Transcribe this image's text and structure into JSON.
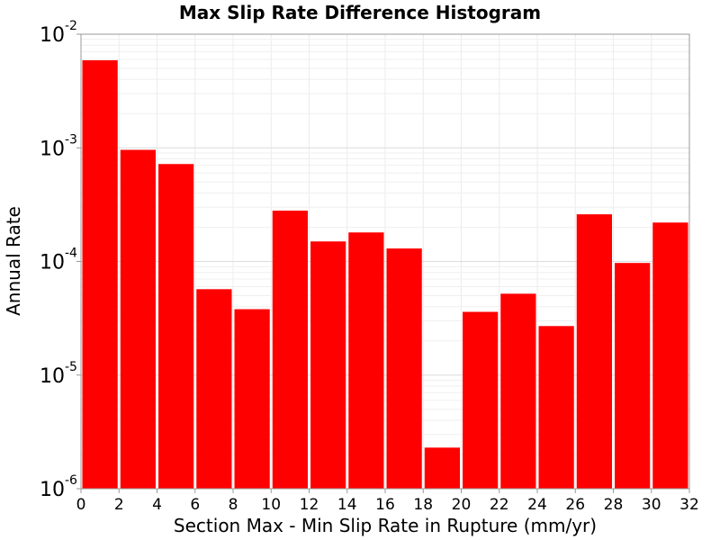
{
  "chart_data": {
    "type": "bar",
    "title": "Max Slip Rate Difference Histogram",
    "xlabel": "Section Max - Min Slip Rate in Rupture (mm/yr)",
    "ylabel": "Annual Rate",
    "yscale": "log",
    "ylim": [
      1e-06,
      0.01
    ],
    "xlim": [
      0,
      32
    ],
    "bin_width": 2,
    "x": [
      1,
      3,
      5,
      7,
      9,
      11,
      13,
      15,
      17,
      19,
      21,
      23,
      25,
      27,
      29,
      31
    ],
    "values": [
      0.0059,
      0.00096,
      0.00072,
      5.7e-05,
      3.8e-05,
      0.00028,
      0.00015,
      0.00018,
      0.00013,
      2.3e-06,
      3.6e-05,
      5.2e-05,
      2.7e-05,
      0.00026,
      9.7e-05,
      0.00022
    ],
    "bar_color": "#ff0000",
    "grid": true,
    "xticks": [
      "0",
      "2",
      "4",
      "6",
      "8",
      "10",
      "12",
      "14",
      "16",
      "18",
      "20",
      "22",
      "24",
      "26",
      "28",
      "30",
      "32"
    ],
    "yticks": [
      {
        "base": "10",
        "exp": "-6"
      },
      {
        "base": "10",
        "exp": "-5"
      },
      {
        "base": "10",
        "exp": "-4"
      },
      {
        "base": "10",
        "exp": "-3"
      },
      {
        "base": "10",
        "exp": "-2"
      }
    ]
  }
}
